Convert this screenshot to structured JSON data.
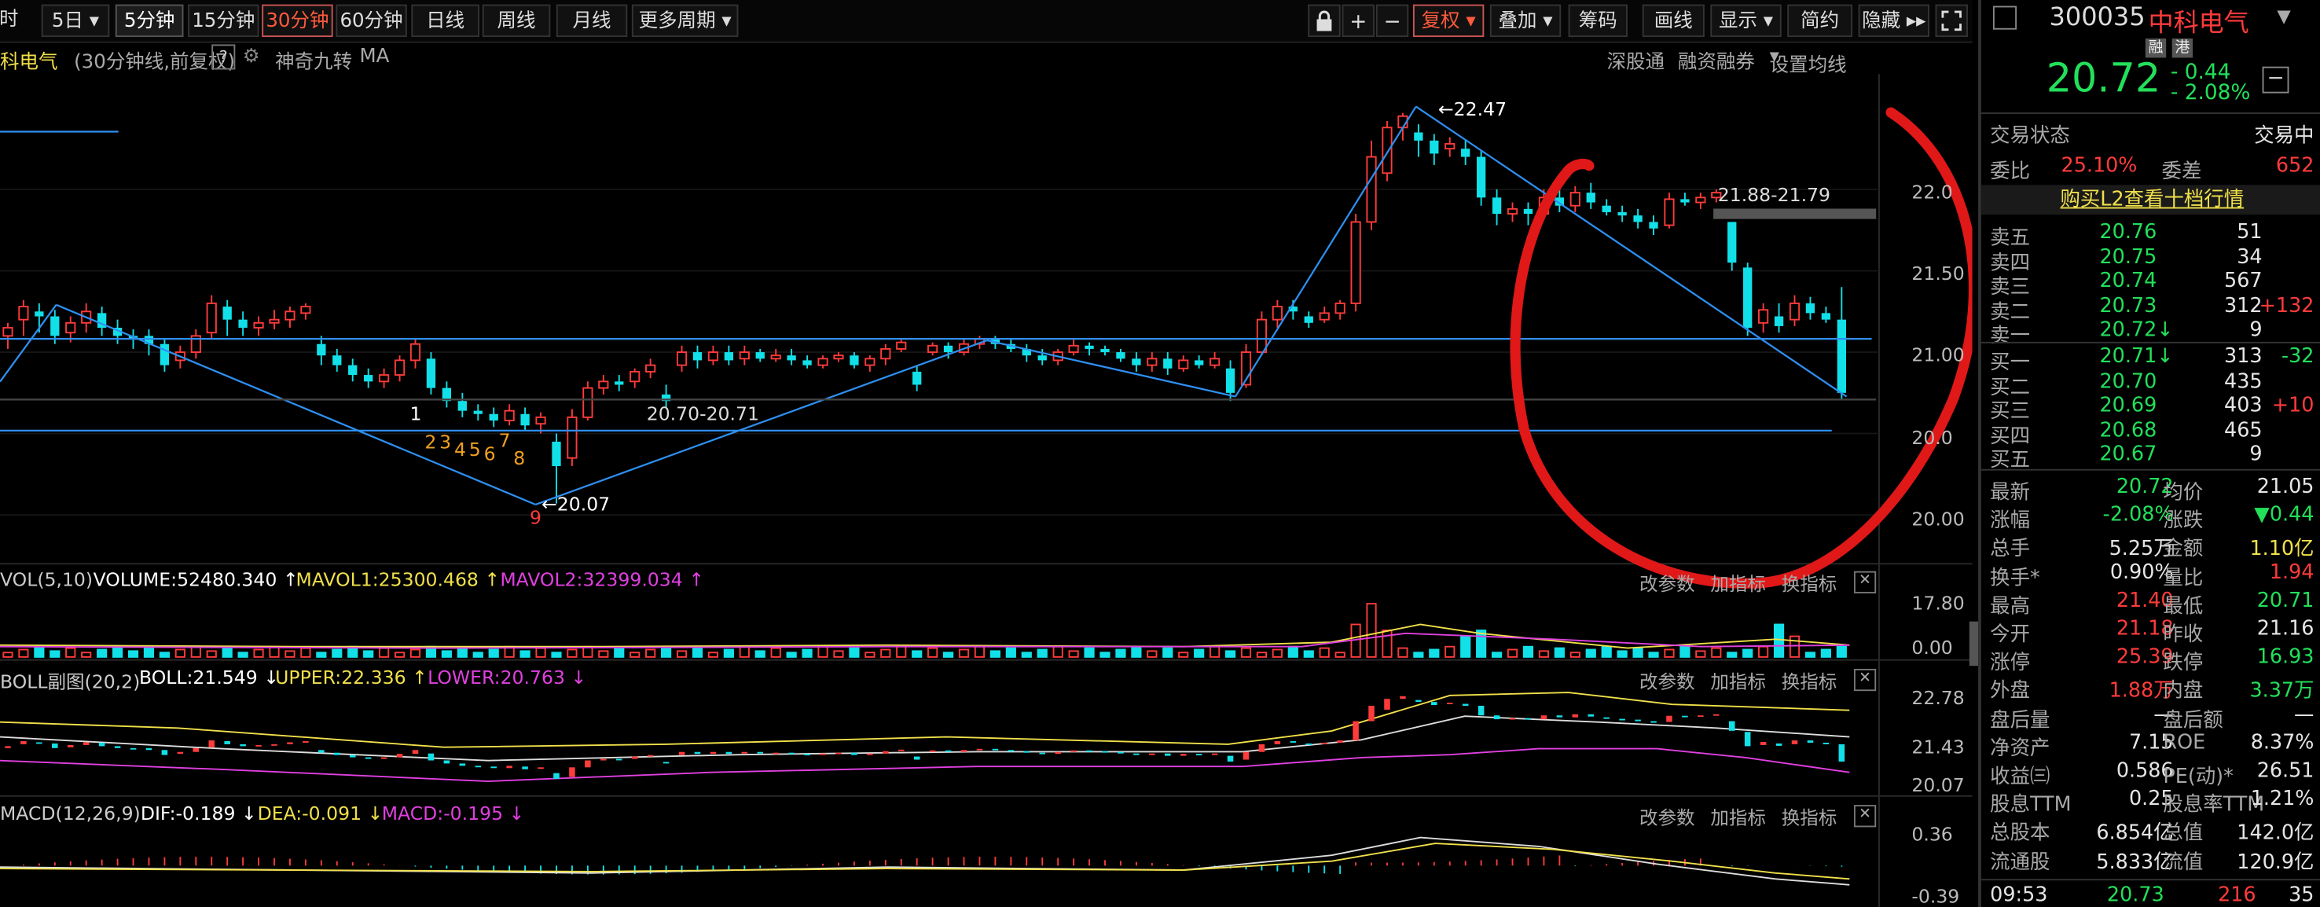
{
  "toolbar": {
    "left_cut": "时",
    "periods": [
      "5日",
      "5分钟",
      "15分钟",
      "30分钟",
      "60分钟",
      "日线",
      "周线",
      "月线",
      "更多周期"
    ],
    "lock_icon": "lock-icon",
    "plus": "+",
    "minus": "−",
    "fuquan": "复权",
    "overlay": "叠加",
    "chips": "筹码",
    "draw": "画线",
    "display": "显示",
    "simple": "简约",
    "hide": "隐藏",
    "fullscreen_icon": "expand-icon"
  },
  "subheader": {
    "stock_name": "科电气",
    "desc": "(30分钟线,前复权)",
    "help": "?",
    "indicator": "神奇九转",
    "ma": "MA",
    "link1": "深股通",
    "link2": "融资融券",
    "link3": "设置均线"
  },
  "main_chart": {
    "y_ticks": [
      "22.0",
      "21.50",
      "21.00",
      "20.0",
      "20.00"
    ],
    "annot_high": "22.47",
    "annot_low": "20.07",
    "annot_range1": "20.70-20.71",
    "annot_range2": "21.88-21.79",
    "nine_turn": [
      "1",
      "2",
      "3",
      "4",
      "5",
      "6",
      "7",
      "8",
      "9"
    ]
  },
  "chart_data": {
    "type": "candlestick",
    "ylim": [
      19.8,
      22.6
    ],
    "bars_note": "30-minute candles, last price 20.72",
    "last": 20.72,
    "high": 22.47,
    "low": 20.07
  },
  "volume_panel": {
    "title": "VOL(5,10)",
    "vol": "VOLUME:52480.340",
    "mavol1": "MAVOL1:25300.468",
    "mavol2": "MAVOL2:32399.034",
    "y_ticks": [
      "17.80",
      "0.00"
    ],
    "btn1": "改参数",
    "btn2": "加指标",
    "btn3": "换指标"
  },
  "boll_panel": {
    "title": "BOLL副图(20,2)",
    "boll": "BOLL:21.549",
    "upper": "UPPER:22.336",
    "lower": "LOWER:20.763",
    "y_ticks": [
      "22.78",
      "21.43",
      "20.07"
    ],
    "btn1": "改参数",
    "btn2": "加指标",
    "btn3": "换指标"
  },
  "macd_panel": {
    "title": "MACD(12,26,9)",
    "dif": "DIF:-0.189",
    "dea": "DEA:-0.091",
    "macd": "MACD:-0.195",
    "y_ticks": [
      "0.36",
      "-0.39"
    ],
    "btn1": "改参数",
    "btn2": "加指标",
    "btn3": "换指标"
  },
  "quote": {
    "code": "300035",
    "name": "中科电气",
    "tag1": "融",
    "tag2": "港",
    "price": "20.72",
    "change": "- 0.44",
    "change_pct": "- 2.08%",
    "trade_state_label": "交易状态",
    "trade_state": "交易中",
    "weibi_label": "委比",
    "weibi": "25.10%",
    "weicha_label": "委差",
    "weicha": "652",
    "l2_link": "购买L2查看十档行情",
    "asks": [
      {
        "label": "卖五",
        "price": "20.76",
        "vol": "51",
        "chg": ""
      },
      {
        "label": "卖四",
        "price": "20.75",
        "vol": "34",
        "chg": ""
      },
      {
        "label": "卖三",
        "price": "20.74",
        "vol": "567",
        "chg": ""
      },
      {
        "label": "卖二",
        "price": "20.73",
        "vol": "312",
        "chg": "+132"
      },
      {
        "label": "卖一",
        "price": "20.72↓",
        "vol": "9",
        "chg": ""
      }
    ],
    "bids": [
      {
        "label": "买一",
        "price": "20.71↓",
        "vol": "313",
        "chg": "-32"
      },
      {
        "label": "买二",
        "price": "20.70",
        "vol": "435",
        "chg": ""
      },
      {
        "label": "买三",
        "price": "20.69",
        "vol": "403",
        "chg": "+10"
      },
      {
        "label": "买四",
        "price": "20.68",
        "vol": "465",
        "chg": ""
      },
      {
        "label": "买五",
        "price": "20.67",
        "vol": "9",
        "chg": ""
      }
    ],
    "stats": [
      {
        "l1": "最新",
        "v1": "20.72",
        "c1": "grn",
        "l2": "均价",
        "v2": "21.05",
        "c2": "wht"
      },
      {
        "l1": "涨幅",
        "v1": "-2.08%",
        "c1": "grn",
        "l2": "涨跌",
        "v2": "▼0.44",
        "c2": "grn"
      },
      {
        "l1": "总手",
        "v1": "5.25万",
        "c1": "wht",
        "l2": "金额",
        "v2": "1.10亿",
        "c2": "yel"
      },
      {
        "l1": "换手*",
        "v1": "0.90%",
        "c1": "wht",
        "l2": "量比",
        "v2": "1.94",
        "c2": "red"
      },
      {
        "l1": "最高",
        "v1": "21.40",
        "c1": "red",
        "l2": "最低",
        "v2": "20.71",
        "c2": "grn"
      },
      {
        "l1": "今开",
        "v1": "21.18",
        "c1": "red",
        "l2": "昨收",
        "v2": "21.16",
        "c2": "wht"
      },
      {
        "l1": "涨停",
        "v1": "25.39",
        "c1": "red",
        "l2": "跌停",
        "v2": "16.93",
        "c2": "grn"
      },
      {
        "l1": "外盘",
        "v1": "1.88万",
        "c1": "red",
        "l2": "内盘",
        "v2": "3.37万",
        "c2": "grn"
      },
      {
        "l1": "盘后量",
        "v1": "—",
        "c1": "wht",
        "l2": "盘后额",
        "v2": "—",
        "c2": "wht"
      },
      {
        "l1": "净资产",
        "v1": "7.15",
        "c1": "wht",
        "l2": "ROE",
        "v2": "8.37%",
        "c2": "wht"
      },
      {
        "l1": "收益㈢",
        "v1": "0.586",
        "c1": "wht",
        "l2": "PE(动)*",
        "v2": "26.51",
        "c2": "wht"
      },
      {
        "l1": "股息TTM",
        "v1": "0.25",
        "c1": "wht",
        "l2": "股息率TTM",
        "v2": "1.21%",
        "c2": "wht"
      },
      {
        "l1": "总股本",
        "v1": "6.854亿",
        "c1": "wht",
        "l2": "总值",
        "v2": "142.0亿",
        "c2": "wht"
      },
      {
        "l1": "流通股",
        "v1": "5.833亿",
        "c1": "wht",
        "l2": "流值",
        "v2": "120.9亿",
        "c2": "wht"
      }
    ],
    "tick": {
      "time": "09:53",
      "price": "20.73",
      "vol": "216",
      "n": "35"
    }
  },
  "colors": {
    "up": "#ff3b3b",
    "down": "#12e0e8",
    "trend": "#2e8ff0",
    "mark": "#e01818"
  }
}
